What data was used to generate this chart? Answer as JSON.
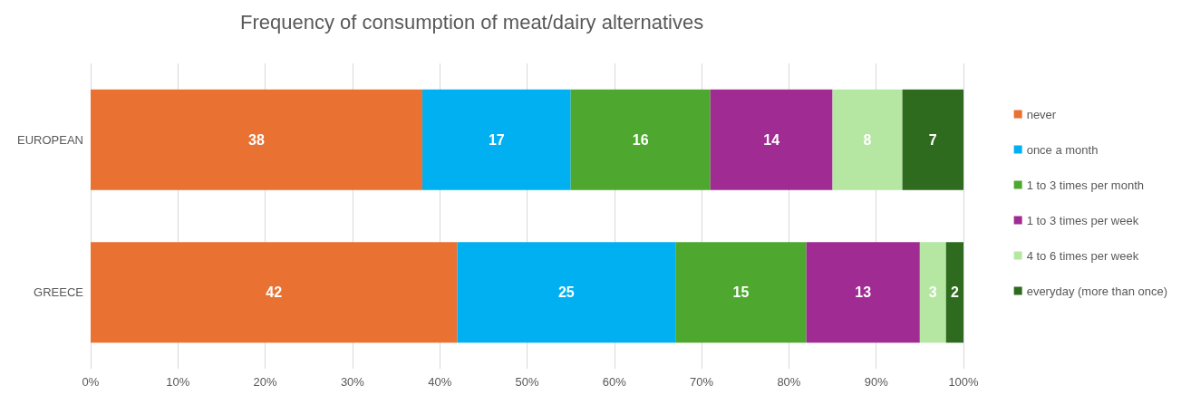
{
  "chart_data": {
    "type": "bar",
    "orientation": "horizontal",
    "stacked": true,
    "title": "Frequency of consumption of meat/dairy alternatives",
    "categories": [
      "EUROPEAN",
      "GREECE"
    ],
    "series": [
      {
        "name": "never",
        "color": "#e97132",
        "values": [
          38,
          42
        ]
      },
      {
        "name": "once a month",
        "color": "#00b0f0",
        "values": [
          17,
          25
        ]
      },
      {
        "name": "1 to 3 times per month",
        "color": "#4ea72e",
        "values": [
          16,
          15
        ]
      },
      {
        "name": "1 to 3 times per week",
        "color": "#a02b93",
        "values": [
          14,
          13
        ]
      },
      {
        "name": "4 to 6 times per week",
        "color": "#b5e6a2",
        "values": [
          8,
          3
        ]
      },
      {
        "name": "everyday (more than once)",
        "color": "#2e6b1f",
        "values": [
          7,
          2
        ]
      }
    ],
    "xlim": [
      0,
      100
    ],
    "xticks": [
      {
        "value": 0,
        "label": "0%"
      },
      {
        "value": 10,
        "label": "10%"
      },
      {
        "value": 20,
        "label": "20%"
      },
      {
        "value": 30,
        "label": "30%"
      },
      {
        "value": 40,
        "label": "40%"
      },
      {
        "value": 50,
        "label": "50%"
      },
      {
        "value": 60,
        "label": "60%"
      },
      {
        "value": 70,
        "label": "70%"
      },
      {
        "value": 80,
        "label": "80%"
      },
      {
        "value": 90,
        "label": "90%"
      },
      {
        "value": 100,
        "label": "100%"
      }
    ],
    "grid": "x",
    "legend": "right",
    "data_labels": true
  }
}
